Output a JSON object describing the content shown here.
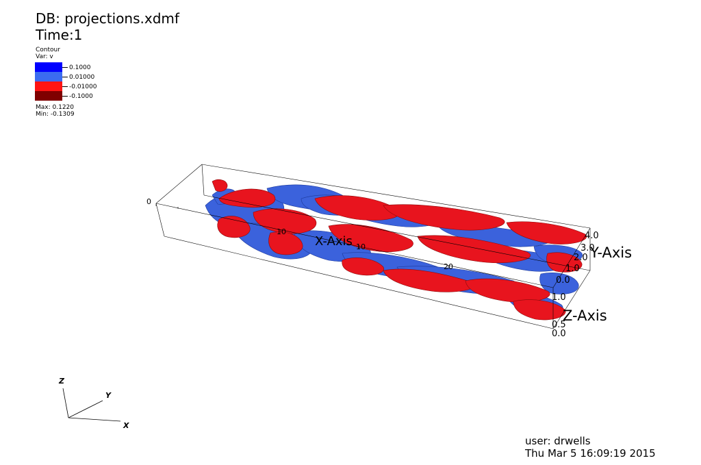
{
  "header": {
    "db": "DB: projections.xdmf",
    "time": "Time:1"
  },
  "legend": {
    "plot_name": "Contour",
    "var_name": "Var: v",
    "entries": [
      {
        "label": "0.1000",
        "color": "#0000ff"
      },
      {
        "label": "0.01000",
        "color": "#3b6cf0"
      },
      {
        "label": "-0.01000",
        "color": "#ff1414"
      },
      {
        "label": "-0.1000",
        "color": "#800000"
      }
    ],
    "max": "Max:  0.1220",
    "min": "Min: -0.1309"
  },
  "axes": {
    "x_title": "X-Axis",
    "y_title": "Y-Axis",
    "z_title": "Z-Axis",
    "x_ticks": [
      "0",
      "10",
      "10",
      "20"
    ],
    "y_ticks": [
      "4.0",
      "3.0",
      "2.0",
      "1.0",
      "0.0"
    ],
    "z_ticks": [
      "1.0",
      "0.5",
      "0.0"
    ]
  },
  "triad": {
    "x": "X",
    "y": "Y",
    "z": "Z"
  },
  "footer": {
    "user": "user: drwells",
    "date": "Thu Mar  5 16:09:19 2015"
  },
  "colors": {
    "positive": "#3b62dc",
    "negative": "#e8141e",
    "outline": "#000000"
  }
}
